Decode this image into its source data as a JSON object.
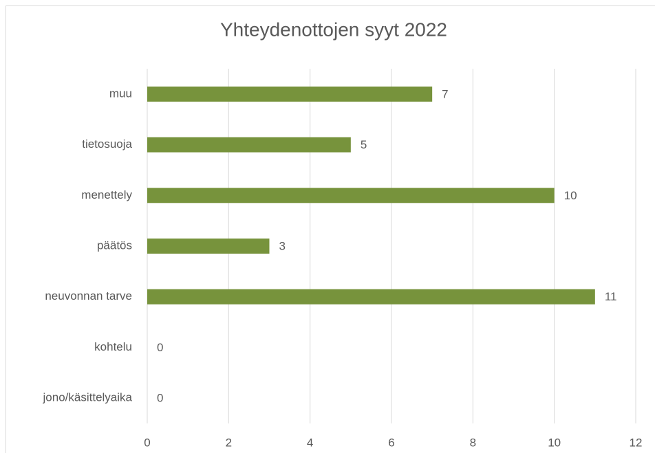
{
  "chart_data": {
    "type": "bar",
    "orientation": "horizontal",
    "title": "Yhteydenottojen syyt 2022",
    "categories": [
      "muu",
      "tietosuoja",
      "menettely",
      "päätös",
      "neuvonnan tarve",
      "kohtelu",
      "jono/käsittelyaika"
    ],
    "values": [
      7,
      5,
      10,
      3,
      11,
      0,
      0
    ],
    "color": "#77933c",
    "xlim": [
      0,
      12
    ],
    "xticks": [
      0,
      2,
      4,
      6,
      8,
      10,
      12
    ],
    "grid": true
  }
}
